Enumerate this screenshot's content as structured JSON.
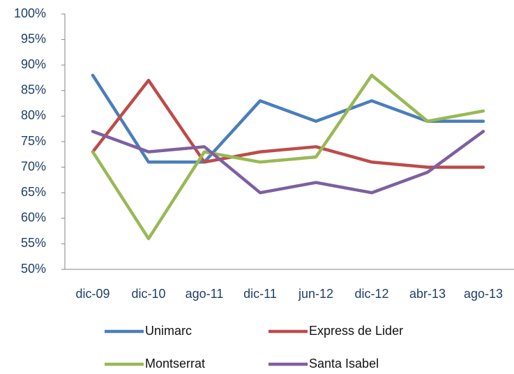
{
  "chart_data": {
    "type": "line",
    "categories": [
      "dic-09",
      "dic-10",
      "ago-11",
      "dic-11",
      "jun-12",
      "dic-12",
      "abr-13",
      "ago-13"
    ],
    "series": [
      {
        "name": "Unimarc",
        "color": "#4a7ebb",
        "values": [
          88,
          71,
          71,
          83,
          79,
          83,
          79,
          79
        ]
      },
      {
        "name": "Express de Lider",
        "color": "#be4b48",
        "values": [
          73,
          87,
          71,
          73,
          74,
          71,
          70,
          70
        ]
      },
      {
        "name": "Montserrat",
        "color": "#98b954",
        "values": [
          73,
          56,
          73,
          71,
          72,
          88,
          79,
          81
        ]
      },
      {
        "name": "Santa Isabel",
        "color": "#7d60a0",
        "values": [
          77,
          73,
          74,
          65,
          67,
          65,
          69,
          77
        ]
      }
    ],
    "ylim": [
      50,
      100
    ],
    "yticks": [
      {
        "value": 50,
        "label": "50%"
      },
      {
        "value": 55,
        "label": "55%"
      },
      {
        "value": 60,
        "label": "60%"
      },
      {
        "value": 65,
        "label": "65%"
      },
      {
        "value": 70,
        "label": "70%"
      },
      {
        "value": 75,
        "label": "75%"
      },
      {
        "value": 80,
        "label": "80%"
      },
      {
        "value": 85,
        "label": "85%"
      },
      {
        "value": 90,
        "label": "90%"
      },
      {
        "value": 95,
        "label": "95%"
      },
      {
        "value": 100,
        "label": "100%"
      }
    ],
    "legend": "bottom"
  }
}
